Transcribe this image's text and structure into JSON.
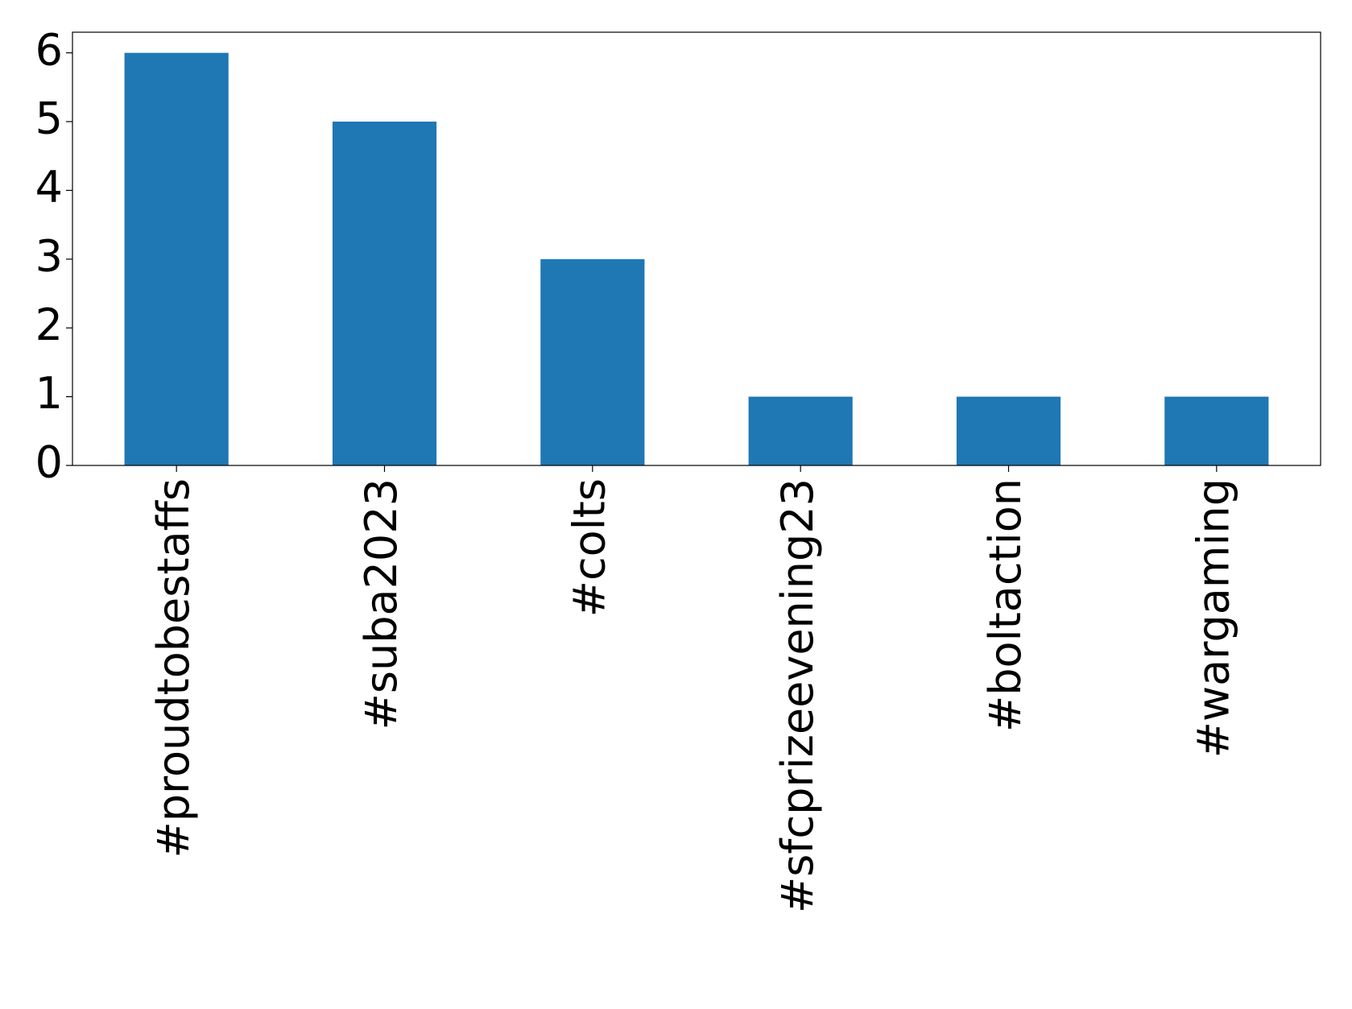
{
  "chart_data": {
    "type": "bar",
    "categories": [
      "#proudtobestaffs",
      "#suba2023",
      "#colts",
      "#sfcprizeevening23",
      "#boltaction",
      "#wargaming"
    ],
    "values": [
      6,
      5,
      3,
      1,
      1,
      1
    ],
    "color": "#1f77b4",
    "ylim": [
      0,
      6.3
    ],
    "yticks": [
      0,
      1,
      2,
      3,
      4,
      5,
      6
    ],
    "grid": false
  }
}
